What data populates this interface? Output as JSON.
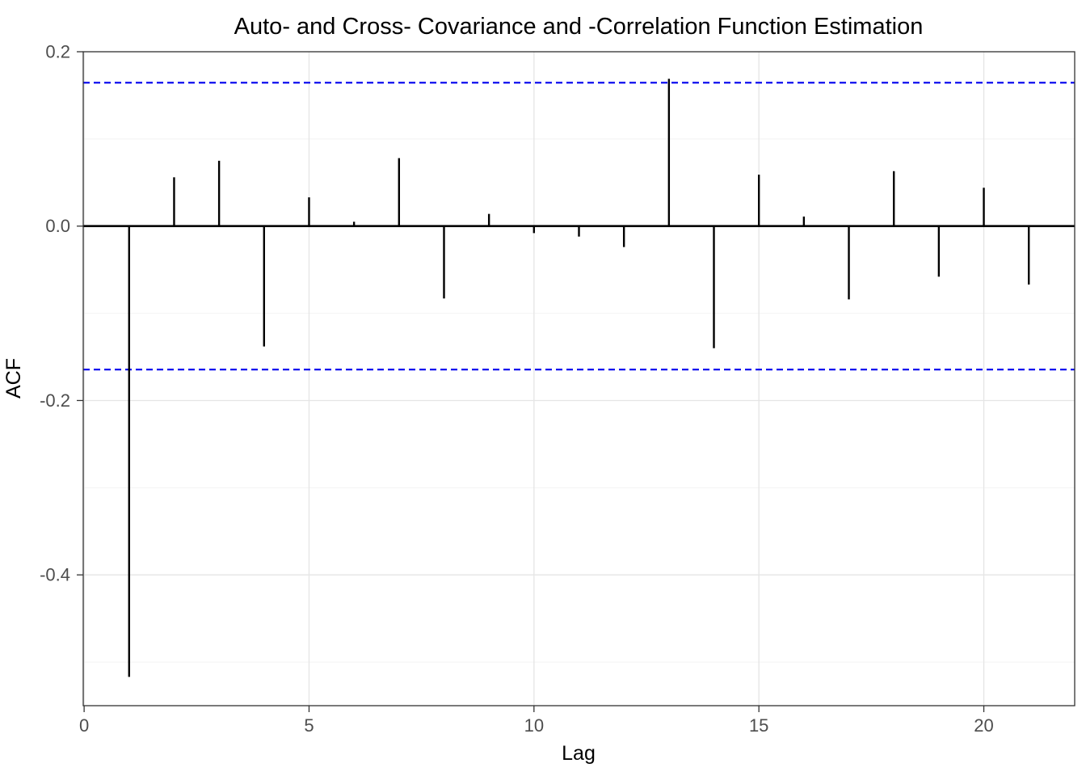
{
  "page": {
    "background": "#ffffff"
  },
  "chart_data": {
    "type": "bar",
    "subtype": "acf-lollipop",
    "title": "Auto- and Cross- Covariance and -Correlation Function Estimation",
    "xlabel": "Lag",
    "ylabel": "ACF",
    "x": [
      1,
      2,
      3,
      4,
      5,
      6,
      7,
      8,
      9,
      10,
      11,
      12,
      13,
      14,
      15,
      16,
      17,
      18,
      19,
      20,
      21
    ],
    "values": [
      -0.517,
      0.056,
      0.075,
      -0.138,
      0.033,
      0.005,
      0.078,
      -0.083,
      0.014,
      -0.008,
      -0.012,
      -0.024,
      0.169,
      -0.14,
      0.059,
      0.011,
      -0.084,
      0.063,
      -0.058,
      0.044,
      -0.067
    ],
    "confidence_bounds": {
      "upper": 0.1645,
      "lower": -0.1645,
      "line_style": "dashed",
      "color": "#0000EE"
    },
    "x_ticks": {
      "values": [
        0,
        5,
        10,
        15,
        20
      ],
      "labels": [
        "0",
        "5",
        "10",
        "15",
        "20"
      ]
    },
    "y_ticks": {
      "values": [
        0.2,
        0.0,
        -0.2,
        -0.4
      ],
      "labels": [
        "0.2",
        "0.0",
        "-0.2",
        "-0.4"
      ]
    },
    "y_minor_gridlines": [
      0.1,
      -0.1,
      -0.3,
      -0.5
    ],
    "xlim": [
      -0.02,
      22.02
    ],
    "ylim": [
      -0.55,
      0.2
    ],
    "grid": "on",
    "legend": "none",
    "colors": {
      "bar": "#000000",
      "zero_line": "#000000",
      "confidence_line": "#0000EE",
      "grid_major": "#e5e5e5",
      "grid_minor": "#f2f2f2",
      "panel_border": "#333333",
      "tick_mark": "#333333",
      "tick_label": "#4d4d4d",
      "axis_title": "#000000",
      "title": "#000000",
      "panel_background": "#ffffff"
    }
  }
}
